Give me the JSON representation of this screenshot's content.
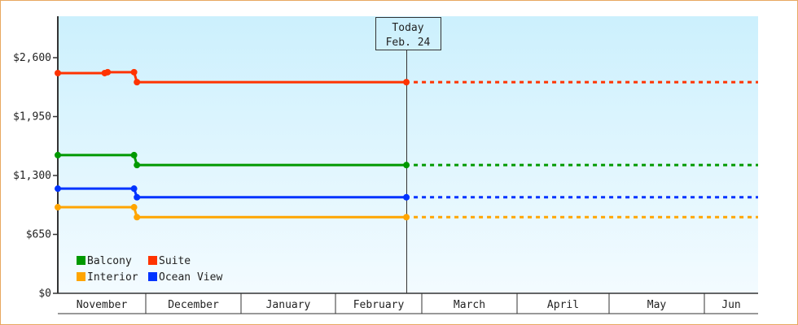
{
  "chart_data": {
    "type": "line",
    "title": "",
    "xlabel": "",
    "ylabel": "",
    "ylim": [
      0,
      2900
    ],
    "y_ticks": [
      "$0",
      "$650",
      "$1,300",
      "$1,950",
      "$2,600"
    ],
    "y_tick_values": [
      0,
      650,
      1300,
      1950,
      2600
    ],
    "x_ticks": [
      "November",
      "December",
      "January",
      "February",
      "March",
      "April",
      "May",
      "Jun"
    ],
    "grid": false,
    "legend_placement": "bottom-left",
    "today": {
      "label": "Today",
      "date": "Feb. 24"
    },
    "projection_style": "dashed after today",
    "series": [
      {
        "name": "Balcony",
        "color": "#009900",
        "points": [
          [
            "Nov 1",
            1525
          ],
          [
            "Nov 27",
            1525
          ],
          [
            "Nov 28",
            1415
          ],
          [
            "Feb 24",
            1415
          ]
        ]
      },
      {
        "name": "Suite",
        "color": "#ff3300",
        "points": [
          [
            "Nov 1",
            2430
          ],
          [
            "Nov 17",
            2430
          ],
          [
            "Nov 18",
            2440
          ],
          [
            "Nov 27",
            2440
          ],
          [
            "Nov 28",
            2330
          ],
          [
            "Feb 24",
            2330
          ]
        ]
      },
      {
        "name": "Interior",
        "color": "#ffa500",
        "points": [
          [
            "Nov 1",
            950
          ],
          [
            "Nov 27",
            950
          ],
          [
            "Nov 28",
            840
          ],
          [
            "Feb 24",
            840
          ]
        ]
      },
      {
        "name": "Ocean View",
        "color": "#0033ff",
        "points": [
          [
            "Nov 1",
            1155
          ],
          [
            "Nov 27",
            1155
          ],
          [
            "Nov 28",
            1060
          ],
          [
            "Feb 24",
            1060
          ]
        ]
      }
    ]
  }
}
